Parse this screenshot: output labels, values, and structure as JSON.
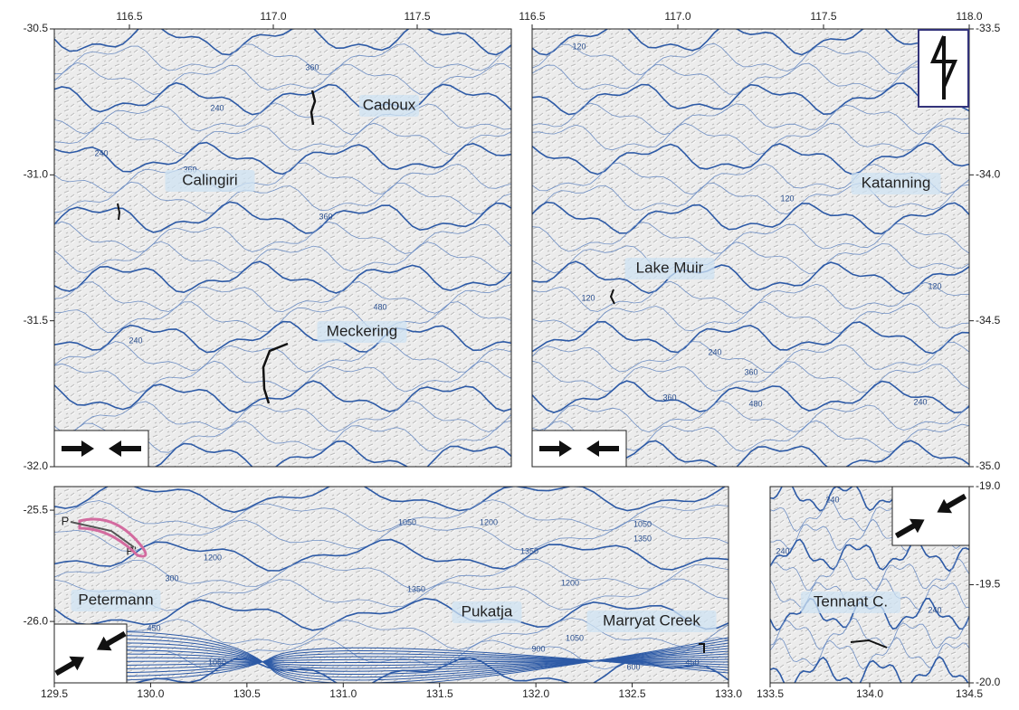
{
  "panels": [
    {
      "xlim": [
        116.239,
        117.827
      ],
      "ylim": [
        -32.0,
        -30.5
      ],
      "xticks": [
        116.5,
        {
          "value": 117,
          "label": "117.0"
        },
        117.5
      ],
      "yticks": [
        -30.5,
        {
          "value": -31,
          "label": "-31.0"
        },
        -31.5,
        {
          "value": -32,
          "label": "-32.0"
        }
      ],
      "places": [
        "Cadoux",
        "Calingiri",
        "Meckering"
      ],
      "contour_labels": [
        "360",
        "240",
        "240",
        "360",
        "360",
        "480",
        "240"
      ]
    },
    {
      "xlim": [
        116.5,
        118.0
      ],
      "ylim": [
        -35.0,
        -33.5
      ],
      "xticks": [
        116.5,
        {
          "value": 117,
          "label": "117.0"
        },
        117.5,
        {
          "value": 118,
          "label": "118.0"
        }
      ],
      "yticks": [
        -33.5,
        {
          "value": -34,
          "label": "-34.0"
        },
        -34.5,
        {
          "value": -35,
          "label": "-35.0"
        }
      ],
      "places": [
        "Katanning",
        "Lake Muir"
      ],
      "contour_labels": [
        "120",
        "120",
        "120",
        "120",
        "120",
        "240",
        "360",
        "480",
        "360",
        "240"
      ]
    },
    {
      "xlim": [
        129.5,
        133.0
      ],
      "ylim": [
        -26.276,
        -25.394
      ],
      "xticks": [
        129.5,
        {
          "value": 130,
          "label": "130.0"
        },
        130.5,
        {
          "value": 131,
          "label": "131.0"
        },
        131.5,
        {
          "value": 132,
          "label": "132.0"
        },
        132.5,
        {
          "value": 133,
          "label": "133.0"
        }
      ],
      "yticks": [
        -25.5,
        {
          "value": -26,
          "label": "-26.0"
        }
      ],
      "places": [
        "Petermann",
        "Pukatja",
        "Marryat Creek",
        "P",
        "P'"
      ],
      "contour_labels": [
        "1050",
        "1200",
        "1350",
        "1050",
        "1350",
        "1200",
        "1350",
        "1200",
        "1050",
        "1050",
        "900",
        "600",
        "450",
        "450",
        "300"
      ]
    },
    {
      "xlim": [
        133.5,
        134.5
      ],
      "ylim": [
        -20.0,
        -19.0
      ],
      "xticks": [
        133.5,
        {
          "value": 134,
          "label": "134.0"
        },
        134.5
      ],
      "yticks": [
        {
          "value": -19,
          "label": "-19.0"
        },
        -19.5,
        {
          "value": -20,
          "label": "-20.0"
        }
      ],
      "places": [
        "Tennant C."
      ],
      "contour_labels": [
        "240",
        "240",
        "240"
      ]
    }
  ]
}
